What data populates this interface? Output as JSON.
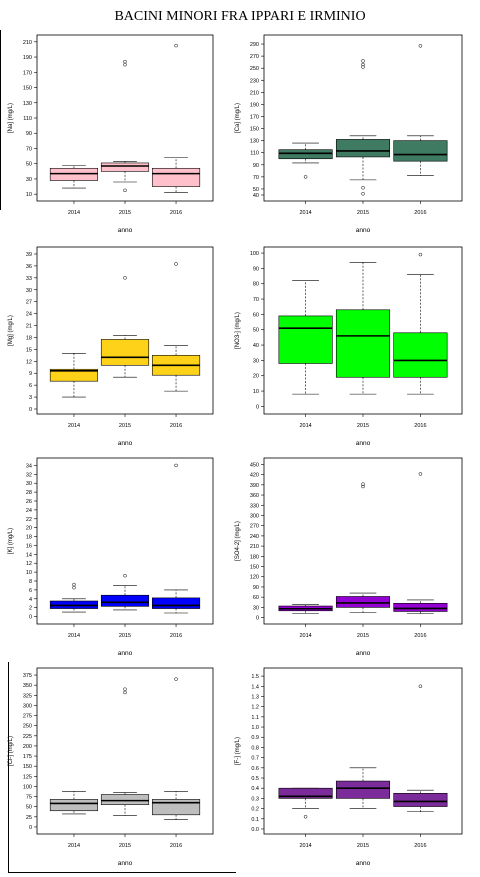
{
  "title": "BACINI MINORI FRA IPPARI E IRMINIO",
  "chart_data": [
    {
      "type": "boxplot",
      "ylabel": "[Na] (mg/L)",
      "xlabel": "anno",
      "categories": [
        "2014",
        "2015",
        "2016"
      ],
      "color": "#ffc0cb",
      "ylim": [
        5,
        215
      ],
      "yticks": [
        10,
        30,
        50,
        70,
        90,
        110,
        130,
        150,
        170,
        190,
        210
      ],
      "ytick_labels": [
        "10",
        "30",
        "50",
        "70",
        "90",
        "110",
        "130",
        "150",
        "170",
        "190",
        "210"
      ],
      "boxes": [
        {
          "whisker_low": 18,
          "q1": 28,
          "median": 37,
          "q3": 44,
          "whisker_high": 48,
          "outliers": []
        },
        {
          "whisker_low": 26,
          "q1": 40,
          "median": 47,
          "q3": 51,
          "whisker_high": 53,
          "outliers": [
            15,
            180,
            184
          ]
        },
        {
          "whisker_low": 12,
          "q1": 20,
          "median": 37,
          "q3": 44,
          "whisker_high": 58,
          "outliers": [
            205
          ]
        }
      ]
    },
    {
      "type": "boxplot",
      "ylabel": "[Ca] (mg/L)",
      "xlabel": "anno",
      "categories": [
        "2014",
        "2015",
        "2016"
      ],
      "color": "#3f7a63",
      "ylim": [
        35,
        300
      ],
      "yticks": [
        40,
        50,
        70,
        90,
        110,
        130,
        150,
        170,
        190,
        210,
        230,
        250,
        270,
        290
      ],
      "ytick_labels": [
        "40",
        "50",
        "70",
        "90",
        "110",
        "130",
        "150",
        "170",
        "190",
        "210",
        "230",
        "250",
        "270",
        "290"
      ],
      "boxes": [
        {
          "whisker_low": 93,
          "q1": 100,
          "median": 109,
          "q3": 115,
          "whisker_high": 126,
          "outliers": [
            70
          ]
        },
        {
          "whisker_low": 65,
          "q1": 103,
          "median": 113,
          "q3": 132,
          "whisker_high": 138,
          "outliers": [
            42,
            52,
            252,
            256,
            262
          ]
        },
        {
          "whisker_low": 72,
          "q1": 96,
          "median": 107,
          "q3": 130,
          "whisker_high": 138,
          "outliers": [
            287
          ]
        }
      ]
    },
    {
      "type": "boxplot",
      "ylabel": "[Mg] (mg/L)",
      "xlabel": "anno",
      "categories": [
        "2014",
        "2015",
        "2016"
      ],
      "color": "#ffd21a",
      "ylim": [
        -0.5,
        40
      ],
      "yticks": [
        0,
        3,
        6,
        9,
        12,
        15,
        18,
        21,
        24,
        27,
        30,
        33,
        36,
        39
      ],
      "ytick_labels": [
        "0",
        "3",
        "6",
        "9",
        "12",
        "15",
        "18",
        "21",
        "24",
        "27",
        "30",
        "33",
        "36",
        "39"
      ],
      "boxes": [
        {
          "whisker_low": 3,
          "q1": 7,
          "median": 9.6,
          "q3": 10,
          "whisker_high": 14,
          "outliers": []
        },
        {
          "whisker_low": 8,
          "q1": 11,
          "median": 13,
          "q3": 17.5,
          "whisker_high": 18.5,
          "outliers": [
            33
          ]
        },
        {
          "whisker_low": 4.5,
          "q1": 8.5,
          "median": 11,
          "q3": 13.5,
          "whisker_high": 16,
          "outliers": [
            36.5
          ]
        }
      ]
    },
    {
      "type": "boxplot",
      "ylabel": "[NO3-] (mg/L)",
      "xlabel": "anno",
      "categories": [
        "2014",
        "2015",
        "2016"
      ],
      "color": "#00ff00",
      "ylim": [
        -3,
        102
      ],
      "yticks": [
        0,
        10,
        20,
        30,
        40,
        50,
        60,
        70,
        80,
        90,
        100
      ],
      "ytick_labels": [
        "0",
        "10",
        "20",
        "30",
        "40",
        "50",
        "60",
        "70",
        "80",
        "90",
        "100"
      ],
      "boxes": [
        {
          "whisker_low": 8,
          "q1": 28,
          "median": 51,
          "q3": 59,
          "whisker_high": 82,
          "outliers": []
        },
        {
          "whisker_low": 8,
          "q1": 19,
          "median": 46,
          "q3": 63,
          "whisker_high": 94,
          "outliers": []
        },
        {
          "whisker_low": 8,
          "q1": 19,
          "median": 30,
          "q3": 48,
          "whisker_high": 86,
          "outliers": [
            99
          ]
        }
      ]
    },
    {
      "type": "boxplot",
      "ylabel": "[K] (mg/L)",
      "xlabel": "anno",
      "categories": [
        "2014",
        "2015",
        "2016"
      ],
      "color": "#0000ff",
      "ylim": [
        -1,
        35
      ],
      "yticks": [
        0,
        2,
        4,
        6,
        8,
        10,
        12,
        14,
        16,
        18,
        20,
        22,
        24,
        26,
        28,
        30,
        32,
        34
      ],
      "ytick_labels": [
        "0",
        "2",
        "4",
        "6",
        "8",
        "10",
        "12",
        "14",
        "16",
        "18",
        "20",
        "22",
        "24",
        "26",
        "28",
        "30",
        "32",
        "34"
      ],
      "boxes": [
        {
          "whisker_low": 1,
          "q1": 1.8,
          "median": 2.5,
          "q3": 3.5,
          "whisker_high": 4,
          "outliers": [
            6.5,
            7.2
          ]
        },
        {
          "whisker_low": 1.5,
          "q1": 2.3,
          "median": 3.2,
          "q3": 4.8,
          "whisker_high": 7,
          "outliers": [
            9.2
          ]
        },
        {
          "whisker_low": 0.8,
          "q1": 1.8,
          "median": 2.5,
          "q3": 4.2,
          "whisker_high": 6,
          "outliers": [
            34
          ]
        }
      ]
    },
    {
      "type": "boxplot",
      "ylabel": "[SO4-2] (mg/L)",
      "xlabel": "anno",
      "categories": [
        "2014",
        "2015",
        "2016"
      ],
      "color": "#9400d3",
      "ylim": [
        -10,
        460
      ],
      "yticks": [
        0,
        30,
        60,
        90,
        120,
        150,
        180,
        210,
        240,
        270,
        300,
        330,
        360,
        390,
        420,
        450
      ],
      "ytick_labels": [
        "0",
        "30",
        "60",
        "90",
        "120",
        "150",
        "180",
        "210",
        "240",
        "270",
        "300",
        "330",
        "360",
        "390",
        "420",
        "450"
      ],
      "boxes": [
        {
          "whisker_low": 12,
          "q1": 20,
          "median": 26,
          "q3": 34,
          "whisker_high": 38,
          "outliers": []
        },
        {
          "whisker_low": 15,
          "q1": 30,
          "median": 43,
          "q3": 62,
          "whisker_high": 72,
          "outliers": [
            385,
            392
          ]
        },
        {
          "whisker_low": 12,
          "q1": 18,
          "median": 27,
          "q3": 42,
          "whisker_high": 52,
          "outliers": [
            422
          ]
        }
      ]
    },
    {
      "type": "boxplot",
      "ylabel": "[Cl-] (mg/L)",
      "xlabel": "anno",
      "categories": [
        "2014",
        "2015",
        "2016"
      ],
      "color": "#bebebe",
      "ylim": [
        -10,
        385
      ],
      "yticks": [
        0,
        25,
        50,
        75,
        100,
        125,
        150,
        175,
        200,
        225,
        250,
        275,
        300,
        325,
        350,
        375
      ],
      "ytick_labels": [
        "0",
        "25",
        "50",
        "75",
        "100",
        "125",
        "150",
        "175",
        "200",
        "225",
        "250",
        "275",
        "300",
        "325",
        "350",
        "375"
      ],
      "boxes": [
        {
          "whisker_low": 32,
          "q1": 40,
          "median": 58,
          "q3": 68,
          "whisker_high": 88,
          "outliers": []
        },
        {
          "whisker_low": 28,
          "q1": 55,
          "median": 65,
          "q3": 80,
          "whisker_high": 85,
          "outliers": [
            332,
            340
          ]
        },
        {
          "whisker_low": 18,
          "q1": 30,
          "median": 60,
          "q3": 68,
          "whisker_high": 88,
          "outliers": [
            365
          ]
        }
      ]
    },
    {
      "type": "boxplot",
      "ylabel": "[F-] (mg/L)",
      "xlabel": "anno",
      "categories": [
        "2014",
        "2015",
        "2016"
      ],
      "color": "#7b2c9a",
      "ylim": [
        -0.02,
        1.55
      ],
      "yticks": [
        0.0,
        0.1,
        0.2,
        0.3,
        0.4,
        0.5,
        0.6,
        0.7,
        0.8,
        0.9,
        1.0,
        1.1,
        1.2,
        1.3,
        1.4,
        1.5
      ],
      "ytick_labels": [
        "0.0",
        "0.1",
        "0.2",
        "0.3",
        "0.4",
        "0.5",
        "0.6",
        "0.7",
        "0.8",
        "0.9",
        "1.0",
        "1.1",
        "1.2",
        "1.3",
        "1.4",
        "1.5"
      ],
      "boxes": [
        {
          "whisker_low": 0.2,
          "q1": 0.3,
          "median": 0.32,
          "q3": 0.4,
          "whisker_high": 0.4,
          "outliers": [
            0.12
          ]
        },
        {
          "whisker_low": 0.2,
          "q1": 0.3,
          "median": 0.4,
          "q3": 0.47,
          "whisker_high": 0.6,
          "outliers": []
        },
        {
          "whisker_low": 0.17,
          "q1": 0.22,
          "median": 0.27,
          "q3": 0.35,
          "whisker_high": 0.38,
          "outliers": [
            1.4
          ]
        }
      ]
    }
  ]
}
